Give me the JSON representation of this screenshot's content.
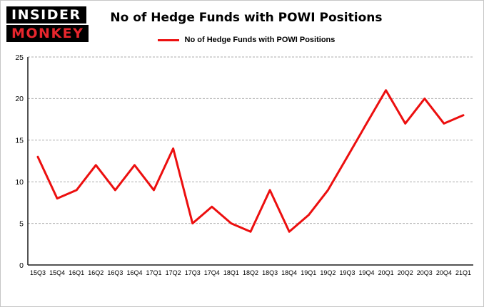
{
  "header": {
    "logo_line1": "INSIDER",
    "logo_line2": "MONKEY",
    "logo_accent_color": "#e8262d",
    "title": "No of Hedge Funds with POWI Positions"
  },
  "legend": {
    "label": "No of Hedge Funds with POWI Positions",
    "color": "#ec0f0f"
  },
  "chart_data": {
    "type": "line",
    "title": "No of Hedge Funds with POWI Positions",
    "categories": [
      "15Q3",
      "15Q4",
      "16Q1",
      "16Q2",
      "16Q3",
      "16Q4",
      "17Q1",
      "17Q2",
      "17Q3",
      "17Q4",
      "18Q1",
      "18Q2",
      "18Q3",
      "18Q4",
      "19Q1",
      "19Q2",
      "19Q3",
      "19Q4",
      "20Q1",
      "20Q2",
      "20Q3",
      "20Q4",
      "21Q1"
    ],
    "values": [
      13,
      8,
      9,
      12,
      9,
      12,
      9,
      14,
      5,
      7,
      5,
      4,
      9,
      4,
      6,
      9,
      13,
      17,
      21,
      17,
      20,
      17,
      18
    ],
    "xlabel": "",
    "ylabel": "",
    "ylim": [
      0,
      25
    ],
    "yticks": [
      0,
      5,
      10,
      15,
      20,
      25
    ],
    "line_color": "#ec0f0f",
    "grid": true,
    "legend_position": "top"
  }
}
